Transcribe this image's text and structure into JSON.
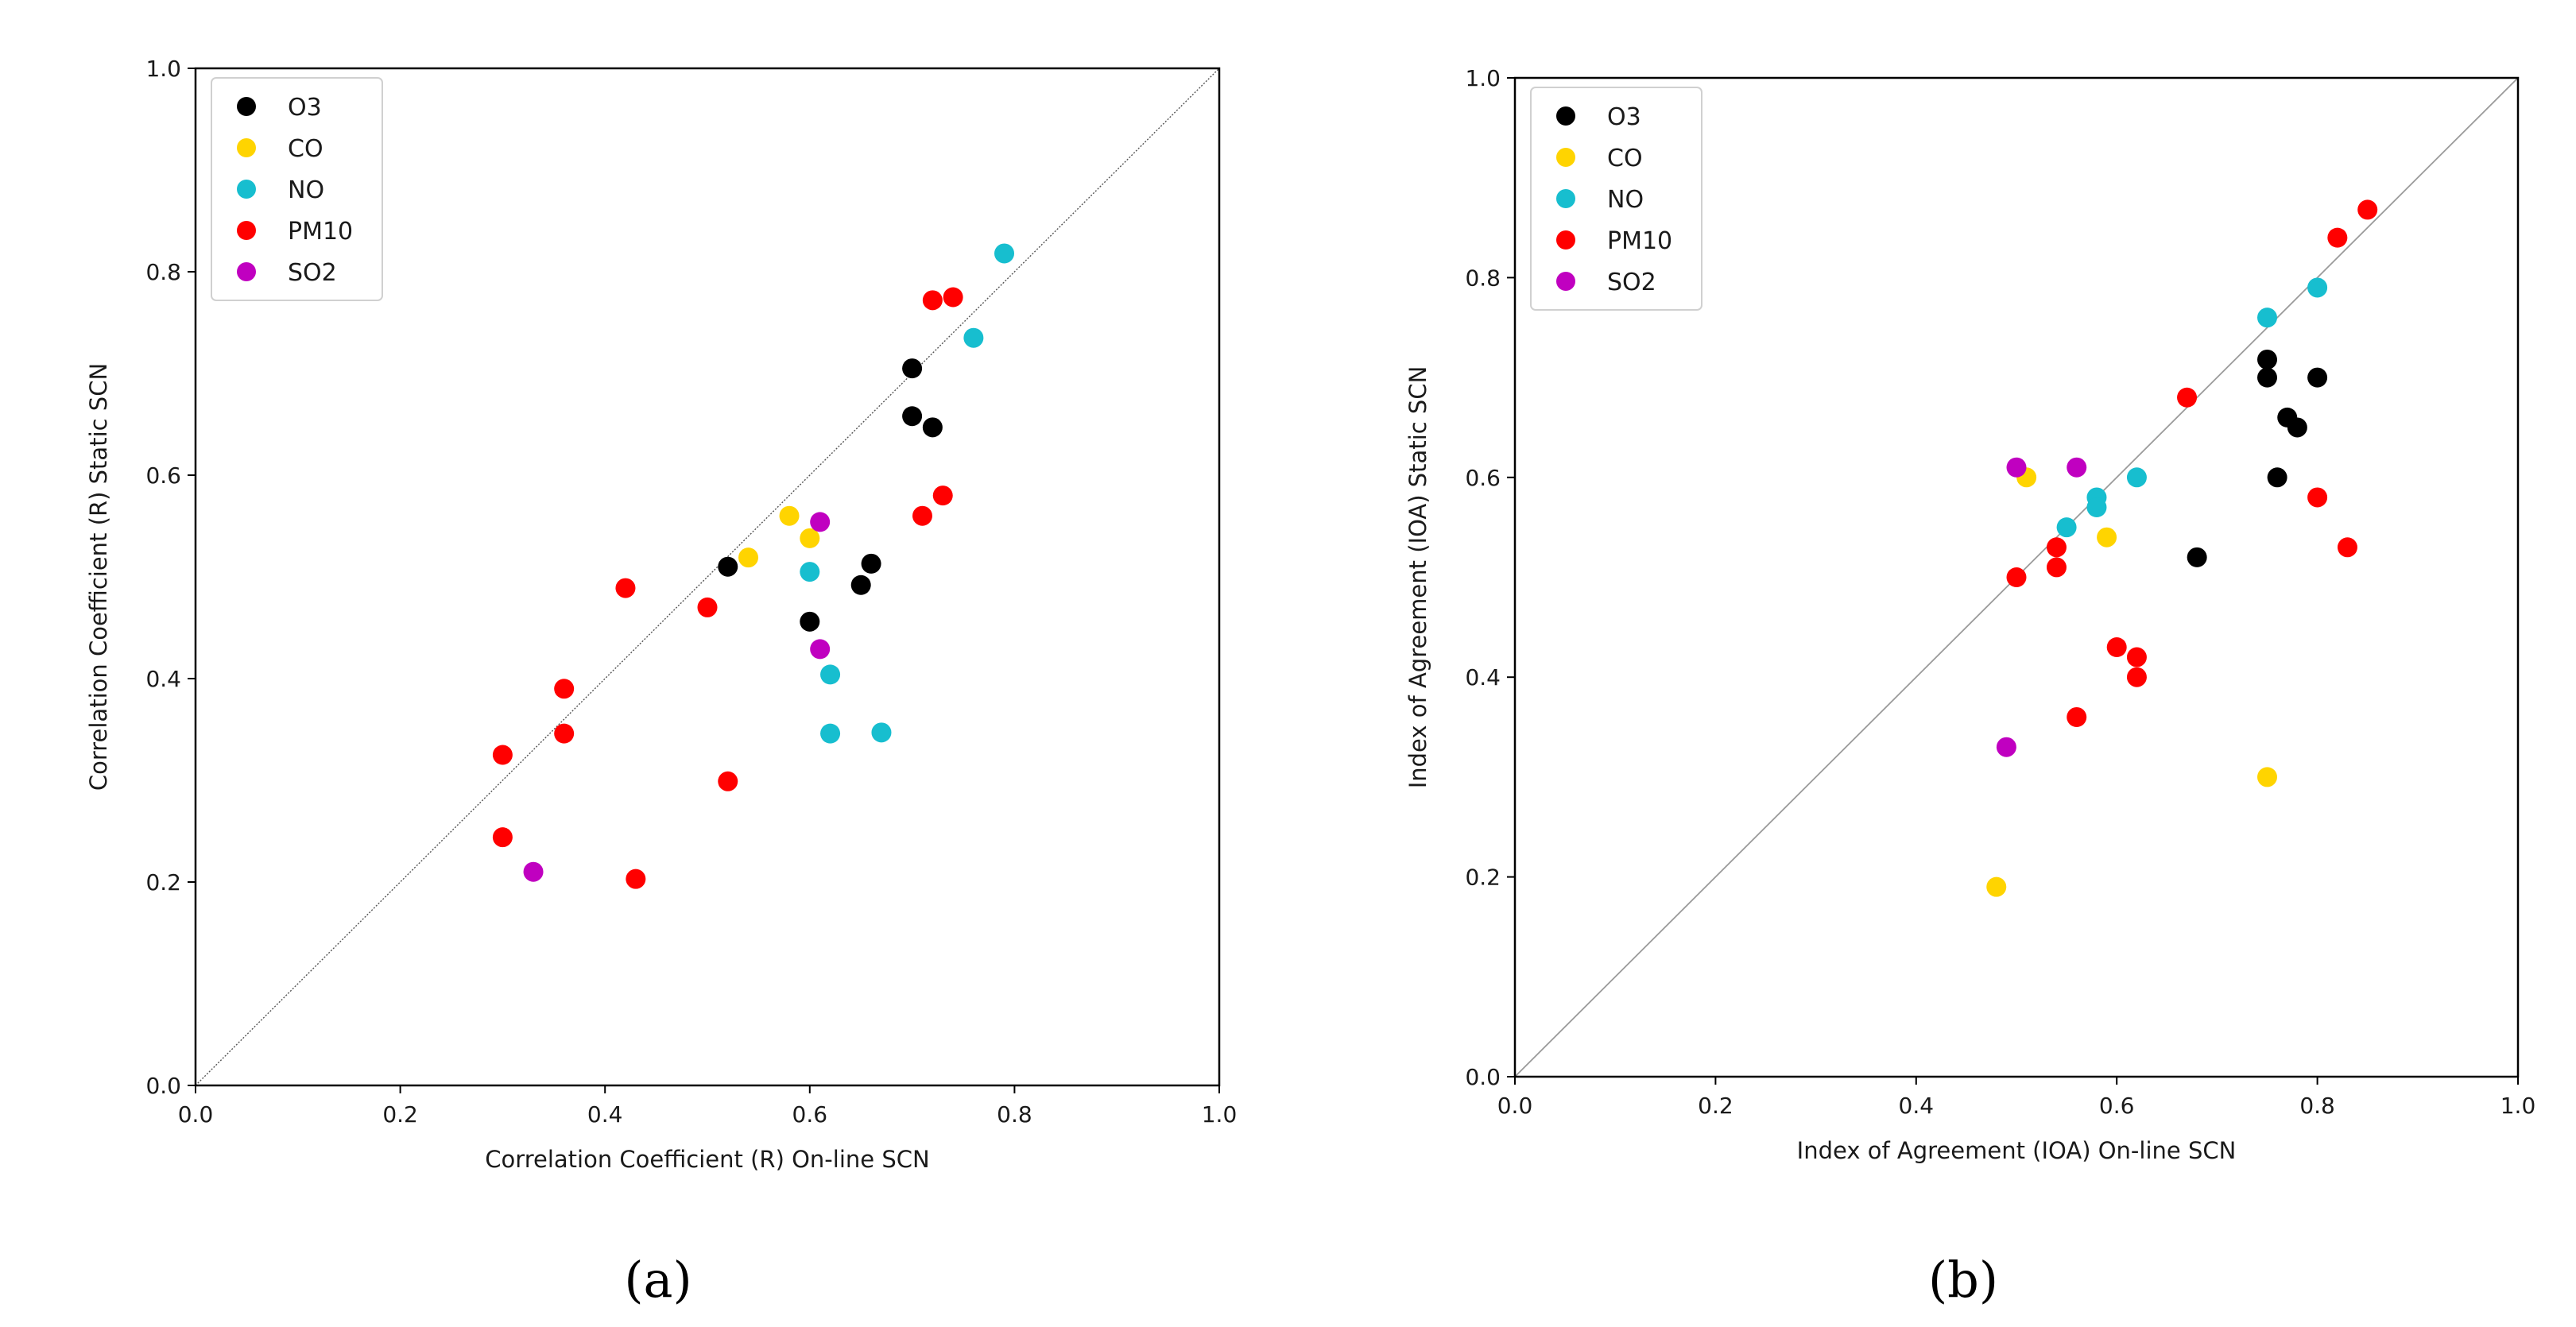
{
  "chart_data": [
    {
      "type": "scatter",
      "panel": "(a)",
      "title": "",
      "xlabel": "Correlation Coefficient (R) On-line SCN",
      "ylabel": "Correlation Coefficient (R) Static SCN",
      "xlim": [
        0.0,
        1.0
      ],
      "ylim": [
        0.0,
        1.0
      ],
      "xticks": [
        "0.0",
        "0.2",
        "0.4",
        "0.6",
        "0.8",
        "1.0"
      ],
      "yticks": [
        "0.0",
        "0.2",
        "0.4",
        "0.6",
        "0.8",
        "1.0"
      ],
      "diagonal": true,
      "grid": false,
      "legend_position": "top-left",
      "series": [
        {
          "name": "O3",
          "color": "#000000",
          "points": [
            [
              0.7,
              0.705
            ],
            [
              0.7,
              0.658
            ],
            [
              0.72,
              0.647
            ],
            [
              0.52,
              0.51
            ],
            [
              0.66,
              0.513
            ],
            [
              0.65,
              0.492
            ],
            [
              0.6,
              0.456
            ]
          ]
        },
        {
          "name": "CO",
          "color": "#ffd400",
          "points": [
            [
              0.58,
              0.56
            ],
            [
              0.6,
              0.538
            ],
            [
              0.54,
              0.519
            ]
          ]
        },
        {
          "name": "NO",
          "color": "#17becf",
          "points": [
            [
              0.79,
              0.818
            ],
            [
              0.76,
              0.735
            ],
            [
              0.6,
              0.505
            ],
            [
              0.62,
              0.404
            ],
            [
              0.62,
              0.346
            ],
            [
              0.67,
              0.347
            ]
          ]
        },
        {
          "name": "PM10",
          "color": "#ff0000",
          "points": [
            [
              0.72,
              0.772
            ],
            [
              0.74,
              0.775
            ],
            [
              0.73,
              0.58
            ],
            [
              0.71,
              0.56
            ],
            [
              0.42,
              0.489
            ],
            [
              0.5,
              0.47
            ],
            [
              0.36,
              0.39
            ],
            [
              0.36,
              0.346
            ],
            [
              0.3,
              0.325
            ],
            [
              0.52,
              0.299
            ],
            [
              0.3,
              0.244
            ],
            [
              0.43,
              0.203
            ]
          ]
        },
        {
          "name": "SO2",
          "color": "#c000c0",
          "points": [
            [
              0.61,
              0.554
            ],
            [
              0.61,
              0.429
            ],
            [
              0.33,
              0.21
            ]
          ]
        }
      ]
    },
    {
      "type": "scatter",
      "panel": "(b)",
      "title": "",
      "xlabel": "Index of Agreement (IOA) On-line SCN",
      "ylabel": "Index of Agreement (IOA) Static SCN",
      "xlim": [
        0.0,
        1.0
      ],
      "ylim": [
        0.0,
        1.0
      ],
      "xticks": [
        "0.0",
        "0.2",
        "0.4",
        "0.6",
        "0.8",
        "1.0"
      ],
      "yticks": [
        "0.0",
        "0.2",
        "0.4",
        "0.6",
        "0.8",
        "1.0"
      ],
      "diagonal": true,
      "grid": false,
      "legend_position": "top-left",
      "series": [
        {
          "name": "O3",
          "color": "#000000",
          "points": [
            [
              0.75,
              0.718
            ],
            [
              0.75,
              0.7
            ],
            [
              0.8,
              0.7
            ],
            [
              0.77,
              0.66
            ],
            [
              0.78,
              0.65
            ],
            [
              0.76,
              0.6
            ],
            [
              0.68,
              0.52
            ]
          ]
        },
        {
          "name": "CO",
          "color": "#ffd400",
          "points": [
            [
              0.51,
              0.6
            ],
            [
              0.59,
              0.54
            ],
            [
              0.75,
              0.3
            ],
            [
              0.48,
              0.19
            ]
          ]
        },
        {
          "name": "NO",
          "color": "#17becf",
          "points": [
            [
              0.8,
              0.79
            ],
            [
              0.75,
              0.76
            ],
            [
              0.62,
              0.6
            ],
            [
              0.58,
              0.58
            ],
            [
              0.58,
              0.57
            ],
            [
              0.55,
              0.55
            ]
          ]
        },
        {
          "name": "PM10",
          "color": "#ff0000",
          "points": [
            [
              0.85,
              0.868
            ],
            [
              0.82,
              0.84
            ],
            [
              0.67,
              0.68
            ],
            [
              0.8,
              0.58
            ],
            [
              0.83,
              0.53
            ],
            [
              0.54,
              0.53
            ],
            [
              0.54,
              0.51
            ],
            [
              0.5,
              0.5
            ],
            [
              0.6,
              0.43
            ],
            [
              0.62,
              0.42
            ],
            [
              0.62,
              0.4
            ],
            [
              0.56,
              0.36
            ]
          ]
        },
        {
          "name": "SO2",
          "color": "#c000c0",
          "points": [
            [
              0.5,
              0.61
            ],
            [
              0.56,
              0.61
            ],
            [
              0.49,
              0.33
            ]
          ]
        }
      ]
    }
  ]
}
